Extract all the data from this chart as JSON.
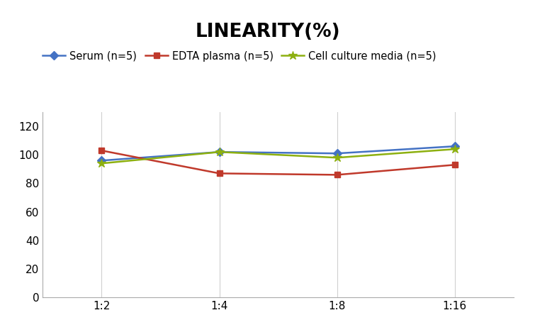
{
  "title": "LINEARITY(%)",
  "title_fontsize": 19,
  "title_fontweight": "bold",
  "x_labels": [
    "1:2",
    "1:4",
    "1:8",
    "1:16"
  ],
  "x_values": [
    0,
    1,
    2,
    3
  ],
  "series": [
    {
      "label": "Serum (n=5)",
      "values": [
        96,
        102,
        101,
        106
      ],
      "color": "#4472C4",
      "marker": "D",
      "markersize": 6,
      "linewidth": 1.8
    },
    {
      "label": "EDTA plasma (n=5)",
      "values": [
        103,
        87,
        86,
        93
      ],
      "color": "#C0392B",
      "marker": "s",
      "markersize": 6,
      "linewidth": 1.8
    },
    {
      "label": "Cell culture media (n=5)",
      "values": [
        94,
        102,
        98,
        104
      ],
      "color": "#8DB010",
      "marker": "*",
      "markersize": 9,
      "linewidth": 1.8
    }
  ],
  "ylim": [
    0,
    130
  ],
  "yticks": [
    0,
    20,
    40,
    60,
    80,
    100,
    120
  ],
  "background_color": "#ffffff",
  "grid_color": "#d0d0d0",
  "legend_fontsize": 10.5,
  "axis_fontsize": 11
}
